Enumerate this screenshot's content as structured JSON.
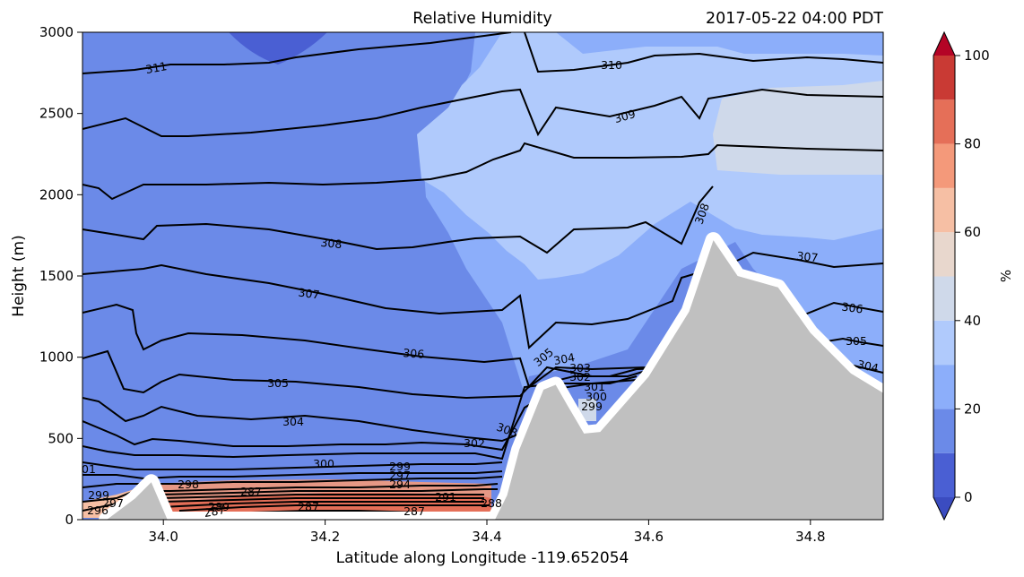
{
  "title_left": "Relative Humidity",
  "title_right": "2017-05-22 04:00 PDT",
  "chart_data": {
    "type": "contour",
    "xlabel": "Latitude along Longitude -119.652054",
    "ylabel": "Height (m)",
    "xlim": [
      33.9,
      34.89
    ],
    "ylim": [
      0,
      3000
    ],
    "x_ticks": [
      "34.0",
      "34.2",
      "34.4",
      "34.6",
      "34.8"
    ],
    "x_tick_values": [
      34.0,
      34.2,
      34.4,
      34.6,
      34.8
    ],
    "y_ticks": [
      "0",
      "500",
      "1000",
      "1500",
      "2000",
      "2500",
      "3000"
    ],
    "y_tick_values": [
      0,
      500,
      1000,
      1500,
      2000,
      2500,
      3000
    ],
    "colorbar": {
      "label": "%",
      "ticks": [
        "0",
        "20",
        "40",
        "60",
        "80",
        "100"
      ],
      "tick_values": [
        0,
        20,
        40,
        60,
        80,
        100
      ],
      "levels": [
        0,
        10,
        20,
        30,
        40,
        50,
        60,
        70,
        80,
        90,
        100
      ],
      "colors": [
        "#4a5fd3",
        "#6b8ae8",
        "#8caefa",
        "#b0cafc",
        "#cfd9ea",
        "#e8d7cd",
        "#f6bfa4",
        "#f4997a",
        "#e56f58",
        "#c93a34"
      ],
      "extend": "both",
      "extend_low_color": "#3b4cc0",
      "extend_high_color": "#b40426"
    },
    "rh_fill_regions": [
      {
        "level": 10,
        "color": "#4a5fd3",
        "region": "top-left patch near 34.15, 2800-3000 m"
      },
      {
        "level": 20,
        "color": "#6b8ae8",
        "region": "left background, x 33.9-34.45"
      },
      {
        "level": 30,
        "color": "#8caefa",
        "region": "upper-right region"
      },
      {
        "level": 40,
        "color": "#b0cafc",
        "region": "mid-right moist band"
      },
      {
        "level": 50,
        "color": "#cfd9ea",
        "region": "top-right patch near 34.7-34.89, 2100-2700 m"
      },
      {
        "level": 80,
        "color": "#e56f58",
        "region": "low-level marine layer near surface"
      }
    ],
    "theta_contour_labels": [
      "311",
      "310",
      "309",
      "308",
      "308",
      "307",
      "307",
      "306",
      "306",
      "305",
      "305",
      "305",
      "304",
      "304",
      "304",
      "303",
      "303",
      "302",
      "302",
      "301",
      "301",
      "300",
      "300",
      "299",
      "299",
      "299",
      "298",
      "297",
      "297",
      "296",
      "294",
      "291",
      "289",
      "288",
      "287",
      "287",
      "287",
      "287"
    ],
    "terrain_color": "#c0c0c0",
    "terrain_height_m": [
      {
        "lat": 33.93,
        "h": 0
      },
      {
        "lat": 33.965,
        "h": 130
      },
      {
        "lat": 33.985,
        "h": 230
      },
      {
        "lat": 34.005,
        "h": 0
      },
      {
        "lat": 34.41,
        "h": 0
      },
      {
        "lat": 34.425,
        "h": 150
      },
      {
        "lat": 34.44,
        "h": 430
      },
      {
        "lat": 34.47,
        "h": 800
      },
      {
        "lat": 34.485,
        "h": 830
      },
      {
        "lat": 34.5,
        "h": 700
      },
      {
        "lat": 34.52,
        "h": 530
      },
      {
        "lat": 34.54,
        "h": 540
      },
      {
        "lat": 34.6,
        "h": 880
      },
      {
        "lat": 34.65,
        "h": 1280
      },
      {
        "lat": 34.68,
        "h": 1720
      },
      {
        "lat": 34.71,
        "h": 1500
      },
      {
        "lat": 34.76,
        "h": 1430
      },
      {
        "lat": 34.8,
        "h": 1150
      },
      {
        "lat": 34.85,
        "h": 900
      },
      {
        "lat": 34.89,
        "h": 780
      }
    ]
  }
}
